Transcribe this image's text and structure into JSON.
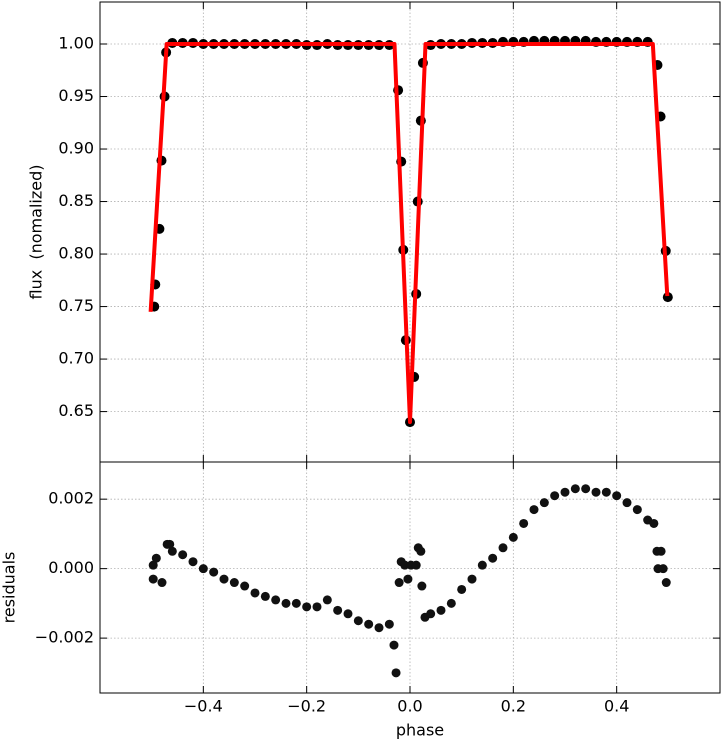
{
  "chart_data": [
    {
      "type": "scatter",
      "ylabel": "flux  (nomalized)",
      "ylim": [
        0.602,
        1.04
      ],
      "yticks": [
        0.65,
        {
          "value": 0.7,
          "label": "0.70"
        },
        0.75,
        {
          "value": 0.8,
          "label": "0.80"
        },
        0.85,
        {
          "value": 0.9,
          "label": "0.90"
        },
        0.95,
        {
          "value": 1.0,
          "label": "1.00"
        }
      ],
      "grid": true,
      "series": [
        {
          "type": "scatter",
          "color": "#000000",
          "x": [
            -0.495,
            -0.493,
            -0.485,
            -0.481,
            -0.475,
            -0.472,
            -0.46,
            -0.44,
            -0.42,
            -0.4,
            -0.38,
            -0.36,
            -0.34,
            -0.32,
            -0.3,
            -0.28,
            -0.26,
            -0.24,
            -0.22,
            -0.2,
            -0.18,
            -0.16,
            -0.14,
            -0.12,
            -0.1,
            -0.08,
            -0.06,
            -0.04,
            -0.023,
            -0.017,
            -0.013,
            -0.008,
            0.0,
            0.008,
            0.012,
            0.015,
            0.021,
            0.025,
            0.04,
            0.06,
            0.08,
            0.1,
            0.12,
            0.14,
            0.16,
            0.18,
            0.2,
            0.22,
            0.24,
            0.26,
            0.28,
            0.3,
            0.32,
            0.34,
            0.36,
            0.38,
            0.4,
            0.42,
            0.44,
            0.46,
            0.479,
            0.485,
            0.495,
            0.499
          ],
          "values": [
            0.75,
            0.771,
            0.824,
            0.889,
            0.95,
            0.992,
            1.001,
            1.001,
            1.001,
            1.0,
            1.0,
            1.0,
            1.0,
            1.0,
            1.0,
            1.0,
            1.0,
            1.0,
            1.0,
            0.999,
            0.999,
            1.0,
            0.999,
            0.999,
            0.999,
            0.999,
            0.999,
            0.999,
            0.956,
            0.888,
            0.804,
            0.718,
            0.64,
            0.683,
            0.762,
            0.85,
            0.927,
            0.982,
            0.999,
            1.0,
            1.0,
            1.0,
            1.001,
            1.001,
            1.001,
            1.002,
            1.002,
            1.002,
            1.003,
            1.003,
            1.003,
            1.003,
            1.003,
            1.003,
            1.002,
            1.002,
            1.002,
            1.002,
            1.002,
            1.002,
            0.98,
            0.931,
            0.803,
            0.759
          ]
        },
        {
          "type": "line",
          "color": "#ff0000",
          "x": [
            -0.502,
            -0.471,
            -0.03,
            0.0,
            0.03,
            0.47,
            0.498
          ],
          "values": [
            0.745,
            1.0,
            1.0,
            0.64,
            1.0,
            1.0,
            0.76
          ]
        }
      ]
    },
    {
      "type": "scatter",
      "xlabel": "phase",
      "ylabel": "residuals",
      "xlim": [
        -0.6,
        0.6
      ],
      "xticks": [
        {
          "value": -0.4,
          "label": "−0.4"
        },
        {
          "value": -0.2,
          "label": "−0.2"
        },
        {
          "value": 0,
          "label": "0.0"
        },
        0.2,
        0.4
      ],
      "ylim": [
        -0.00358,
        0.00307
      ],
      "yticks": [
        {
          "value": -0.002,
          "label": "−0.002"
        },
        {
          "value": 0,
          "label": "0.000"
        },
        0.002
      ],
      "grid": true,
      "series": [
        {
          "type": "scatter",
          "color": "#111111",
          "x": [
            -0.497,
            -0.497,
            -0.491,
            -0.48,
            -0.47,
            -0.465,
            -0.46,
            -0.44,
            -0.42,
            -0.4,
            -0.38,
            -0.36,
            -0.34,
            -0.32,
            -0.3,
            -0.28,
            -0.26,
            -0.24,
            -0.22,
            -0.2,
            -0.18,
            -0.16,
            -0.14,
            -0.12,
            -0.1,
            -0.08,
            -0.06,
            -0.04,
            -0.031,
            -0.027,
            -0.021,
            -0.017,
            -0.01,
            -0.004,
            0.002,
            0.012,
            0.016,
            0.021,
            0.023,
            0.029,
            0.04,
            0.06,
            0.08,
            0.1,
            0.12,
            0.14,
            0.16,
            0.18,
            0.2,
            0.22,
            0.24,
            0.26,
            0.28,
            0.3,
            0.32,
            0.34,
            0.36,
            0.38,
            0.4,
            0.42,
            0.44,
            0.46,
            0.472,
            0.478,
            0.48,
            0.486,
            0.49,
            0.496
          ],
          "values": [
            0.0001,
            -0.0003,
            0.0003,
            -0.0004,
            0.0007,
            0.0007,
            0.0005,
            0.0004,
            0.0002,
            0.0,
            -0.0001,
            -0.0003,
            -0.0004,
            -0.0005,
            -0.0007,
            -0.0008,
            -0.0009,
            -0.001,
            -0.001,
            -0.0011,
            -0.0011,
            -0.0009,
            -0.0012,
            -0.0013,
            -0.0015,
            -0.0016,
            -0.0017,
            -0.0016,
            -0.0022,
            -0.003,
            -0.0004,
            0.0002,
            0.0001,
            -0.0003,
            0.0001,
            0.0001,
            0.0006,
            0.0005,
            -0.0005,
            -0.0014,
            -0.0013,
            -0.0012,
            -0.001,
            -0.0006,
            -0.0003,
            0.0001,
            0.0003,
            0.0006,
            0.0009,
            0.0013,
            0.0017,
            0.0019,
            0.0021,
            0.0022,
            0.0023,
            0.0023,
            0.0022,
            0.0022,
            0.0021,
            0.0019,
            0.0017,
            0.0014,
            0.0013,
            0.0005,
            0.0,
            0.0005,
            0.0,
            -0.0004
          ]
        }
      ]
    }
  ]
}
